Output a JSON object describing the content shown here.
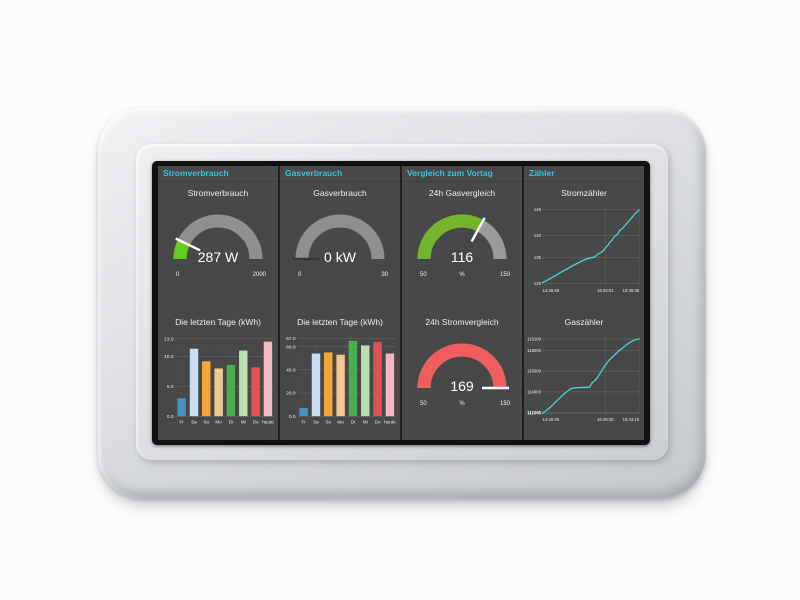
{
  "columns": [
    {
      "header": "Stromverbrauch"
    },
    {
      "header": "Gasverbrauch"
    },
    {
      "header": "Vergleich zum Vortag"
    },
    {
      "header": "Zähler"
    }
  ],
  "colors": {
    "screen_bg": "#484848",
    "header_accent": "#38c2de",
    "gauge_track": "#8f8f8f",
    "line_color": "#4ecfd4"
  },
  "chart_data": [
    {
      "type": "gauge",
      "title": "Stromverbrauch",
      "value": 287,
      "min": 0,
      "max": 2000,
      "label": "287 W",
      "min_label": "0",
      "max_label": "2000",
      "sub_label": "",
      "fill": "#63cc1d",
      "track": "#8f8f8f",
      "needle": "#ffffff"
    },
    {
      "type": "gauge",
      "title": "Gasverbrauch",
      "value": 0,
      "min": 0,
      "max": 30,
      "label": "0 kW",
      "min_label": "0",
      "max_label": "30",
      "sub_label": "",
      "fill": "#63cc1d",
      "track": "#8f8f8f",
      "needle": "#3a3a3a"
    },
    {
      "type": "bar",
      "title": "Die letzten Tage (kWh)",
      "categories": [
        "Fr",
        "Sa",
        "So",
        "Mo",
        "Di",
        "Mi",
        "Do",
        "heute"
      ],
      "values": [
        3.0,
        11.3,
        9.2,
        8.0,
        8.6,
        11.0,
        8.2,
        12.5
      ],
      "bar_colors": [
        "#4292c6",
        "#c9ddf0",
        "#f5a63b",
        "#eec792",
        "#4aaf4e",
        "#b9e2b4",
        "#de5454",
        "#f2b9c4"
      ],
      "yticks": [
        {
          "v": 0,
          "label": "0.0"
        },
        {
          "v": 5,
          "label": "5.0"
        },
        {
          "v": 10,
          "label": "10.0"
        },
        {
          "v": 13,
          "label": "13.0"
        }
      ],
      "ylim": [
        0,
        13.6
      ]
    },
    {
      "type": "bar",
      "title": "Die letzten Tage (kWh)",
      "categories": [
        "Fr",
        "Sa",
        "So",
        "Mo",
        "Di",
        "Mi",
        "Do",
        "heute"
      ],
      "values": [
        7,
        54,
        55,
        53,
        65,
        61,
        64,
        54
      ],
      "bar_colors": [
        "#4292c6",
        "#c9ddf0",
        "#f5a63b",
        "#eec792",
        "#4aaf4e",
        "#b9e2b4",
        "#de5454",
        "#f2b9c4"
      ],
      "yticks": [
        {
          "v": 0,
          "label": "0.0"
        },
        {
          "v": 20,
          "label": "20.0"
        },
        {
          "v": 40,
          "label": "40.0"
        },
        {
          "v": 60,
          "label": "60.0"
        },
        {
          "v": 67,
          "label": "67.0"
        }
      ],
      "ylim": [
        0,
        70
      ]
    },
    {
      "type": "gauge",
      "title": "24h Gasvergleich",
      "value": 116,
      "min": 50,
      "max": 150,
      "label": "116",
      "min_label": "50",
      "max_label": "150",
      "sub_label": "%",
      "fill": "#74b42c",
      "track": "#9a9a9a",
      "needle": "#ffffff"
    },
    {
      "type": "gauge",
      "title": "24h Stromvergleich",
      "value": 169,
      "min": 50,
      "max": 150,
      "label": "169",
      "min_label": "50",
      "max_label": "150",
      "sub_label": "%",
      "fill": "#ef5e5c",
      "track": "#9a9a9a",
      "needle": "#ffffff"
    },
    {
      "type": "line",
      "title": "Stromzähler",
      "color": "#4ecfd4",
      "ylim": [
        128.6,
        146.6
      ],
      "yticks": [
        {
          "v": 129,
          "label": "129"
        },
        {
          "v": 135,
          "label": "135"
        },
        {
          "v": 140,
          "label": "140"
        },
        {
          "v": 146,
          "label": "146"
        }
      ],
      "xticks": [
        {
          "pos": 0,
          "label": "14:45:49"
        },
        {
          "pos": 65,
          "label": "15:43:01"
        },
        {
          "pos": 100,
          "label": "16:45:35"
        }
      ],
      "points": [
        [
          0,
          129.2
        ],
        [
          7,
          130
        ],
        [
          14,
          130.9
        ],
        [
          21,
          131.8
        ],
        [
          28,
          132.7
        ],
        [
          34,
          133.4
        ],
        [
          40,
          134.1
        ],
        [
          45,
          134.6
        ],
        [
          50,
          134.9
        ],
        [
          54,
          135.1
        ],
        [
          57,
          135.7
        ],
        [
          60,
          136.1
        ],
        [
          63,
          136.5
        ],
        [
          65,
          137.2
        ],
        [
          67,
          137.6
        ],
        [
          70,
          138.5
        ],
        [
          72,
          139
        ],
        [
          75,
          139.9
        ],
        [
          78,
          140.4
        ],
        [
          80,
          141.2
        ],
        [
          83,
          141.7
        ],
        [
          86,
          142.5
        ],
        [
          88,
          143
        ],
        [
          91,
          143.8
        ],
        [
          93,
          144.3
        ],
        [
          96,
          145.1
        ],
        [
          98,
          145.5
        ],
        [
          100,
          145.9
        ]
      ]
    },
    {
      "type": "line",
      "title": "Gaszähler",
      "color": "#4ecfd4",
      "ylim": [
        111840,
        119400
      ],
      "yticks": [
        {
          "v": 111940,
          "label": "111940"
        },
        {
          "v": 112000,
          "label": "112000"
        },
        {
          "v": 114000,
          "label": "114000"
        },
        {
          "v": 116000,
          "label": "116000"
        },
        {
          "v": 118000,
          "label": "118000"
        },
        {
          "v": 119100,
          "label": "119100"
        }
      ],
      "xticks": [
        {
          "pos": 0,
          "label": "14:45:49"
        },
        {
          "pos": 65,
          "label": "15:49:30"
        },
        {
          "pos": 100,
          "label": "16:43:10"
        }
      ],
      "points": [
        [
          0,
          111940
        ],
        [
          4,
          112200
        ],
        [
          9,
          112600
        ],
        [
          14,
          113050
        ],
        [
          19,
          113500
        ],
        [
          23,
          113850
        ],
        [
          27,
          114150
        ],
        [
          30,
          114330
        ],
        [
          34,
          114400
        ],
        [
          40,
          114420
        ],
        [
          46,
          114440
        ],
        [
          49,
          114470
        ],
        [
          51,
          114850
        ],
        [
          54,
          115050
        ],
        [
          57,
          115400
        ],
        [
          60,
          115850
        ],
        [
          64,
          116450
        ],
        [
          68,
          116950
        ],
        [
          71,
          117250
        ],
        [
          75,
          117600
        ],
        [
          79,
          117950
        ],
        [
          83,
          118250
        ],
        [
          87,
          118550
        ],
        [
          91,
          118800
        ],
        [
          95,
          119000
        ],
        [
          100,
          119120
        ]
      ]
    }
  ]
}
